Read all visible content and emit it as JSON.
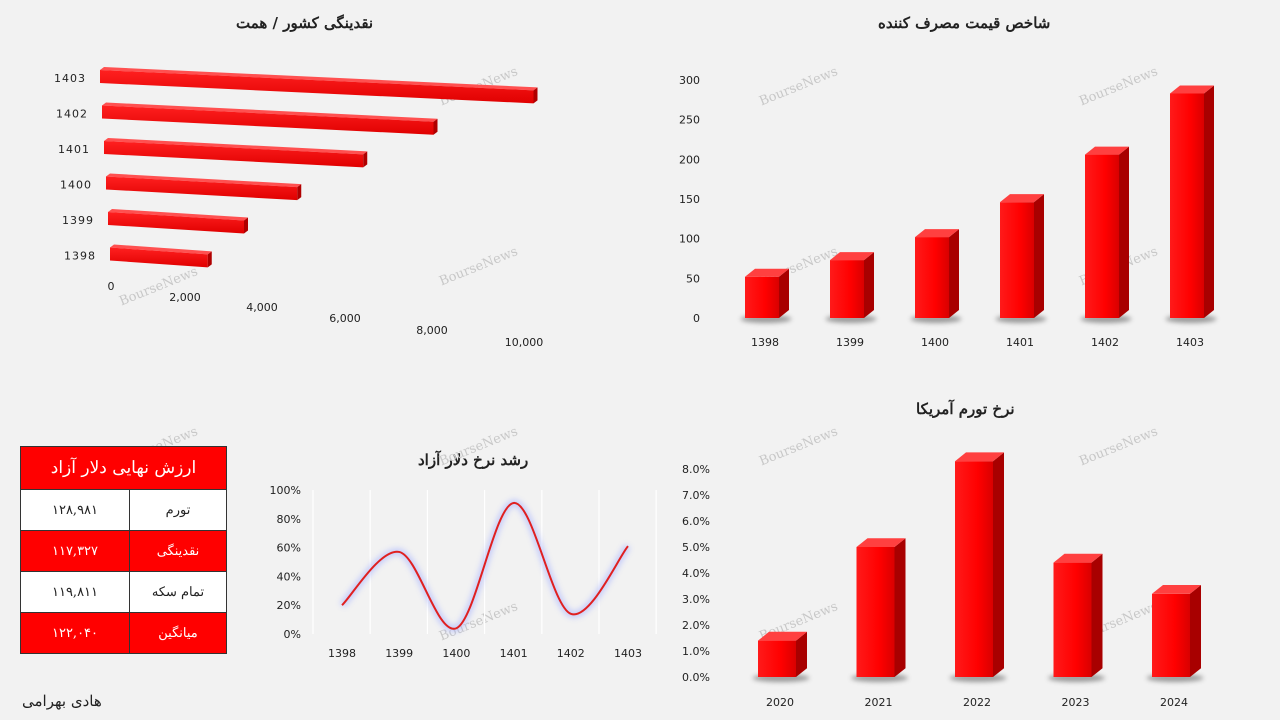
{
  "watermark": "BourseNews",
  "author": "هادی بهرامی",
  "liquidity_chart": {
    "title": "نقدینگی کشور / همت",
    "type": "bar",
    "orientation": "horizontal",
    "categories": [
      "1403",
      "1402",
      "1401",
      "1400",
      "1399",
      "1398"
    ],
    "values": [
      10200,
      7800,
      6100,
      4500,
      3200,
      2300
    ],
    "x_ticks": [
      "0",
      "2,000",
      "4,000",
      "6,000",
      "8,000",
      "10,000"
    ],
    "xlim": [
      0,
      10000
    ],
    "color": "#ff0000"
  },
  "cpi_chart": {
    "title": "شاخص قیمت مصرف کننده",
    "type": "bar",
    "categories": [
      "1398",
      "1399",
      "1400",
      "1401",
      "1402",
      "1403"
    ],
    "values": [
      52,
      73,
      102,
      146,
      206,
      283
    ],
    "y_ticks": [
      "300",
      "250",
      "200",
      "150",
      "100",
      "50",
      "0"
    ],
    "ylim": [
      0,
      300
    ],
    "color": "#ff0000"
  },
  "dollar_growth_chart": {
    "title": "رشد نرخ دلار آزاد",
    "type": "line",
    "categories": [
      "1398",
      "1399",
      "1400",
      "1401",
      "1402",
      "1403"
    ],
    "values": [
      20,
      57,
      4,
      91,
      14,
      61
    ],
    "y_ticks": [
      "100%",
      "80%",
      "60%",
      "40%",
      "20%",
      "0%"
    ],
    "ylim": [
      0,
      100
    ],
    "grid": "vertical",
    "color": "#e02020"
  },
  "us_inflation_chart": {
    "title": "نرخ تورم آمریکا",
    "type": "bar",
    "categories": [
      "2020",
      "2021",
      "2022",
      "2023",
      "2024"
    ],
    "values": [
      1.4,
      5.0,
      8.3,
      4.4,
      3.2
    ],
    "y_ticks": [
      "8.0%",
      "7.0%",
      "6.0%",
      "5.0%",
      "4.0%",
      "3.0%",
      "2.0%",
      "1.0%",
      "0.0%"
    ],
    "ylim": [
      0,
      8
    ],
    "color": "#ff0000"
  },
  "summary_table": {
    "header": "ارزش نهایی دلار آزاد",
    "rows": [
      {
        "label": "تورم",
        "value": "۱۲۸,۹۸۱"
      },
      {
        "label": "نقدینگی",
        "value": "۱۱۷,۳۲۷"
      },
      {
        "label": "تمام سکه",
        "value": "۱۱۹,۸۱۱"
      },
      {
        "label": "میانگین",
        "value": "۱۲۲,۰۴۰"
      }
    ]
  }
}
